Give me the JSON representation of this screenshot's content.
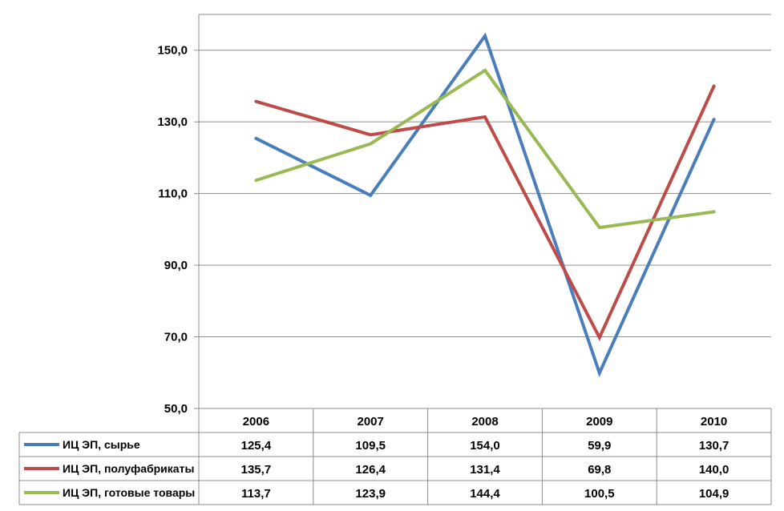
{
  "chart_data": {
    "type": "line",
    "categories": [
      "2006",
      "2007",
      "2008",
      "2009",
      "2010"
    ],
    "series": [
      {
        "name": "ИЦ ЭП, сырье",
        "values": [
          125.4,
          109.5,
          154.0,
          59.9,
          130.7
        ],
        "value_labels": [
          "125,4",
          "109,5",
          "154,0",
          "59,9",
          "130,7"
        ],
        "color": "#4a7ebb"
      },
      {
        "name": "ИЦ ЭП, полуфабрикаты",
        "values": [
          135.7,
          126.4,
          131.4,
          69.8,
          140.0
        ],
        "value_labels": [
          "135,7",
          "126,4",
          "131,4",
          "69,8",
          "140,0"
        ],
        "color": "#be4b48"
      },
      {
        "name": "ИЦ ЭП, готовые товары",
        "values": [
          113.7,
          123.9,
          144.4,
          100.5,
          104.9
        ],
        "value_labels": [
          "113,7",
          "123,9",
          "144,4",
          "100,5",
          "104,9"
        ],
        "color": "#98b954"
      }
    ],
    "y_ticks": [
      50,
      70,
      90,
      110,
      130,
      150
    ],
    "y_tick_labels": [
      "50,0",
      "70,0",
      "90,0",
      "110,0",
      "130,0",
      "150,0"
    ],
    "ylim": [
      50,
      160
    ],
    "grid": true,
    "legend": "data-table-left",
    "title": "",
    "xlabel": "",
    "ylabel": ""
  }
}
